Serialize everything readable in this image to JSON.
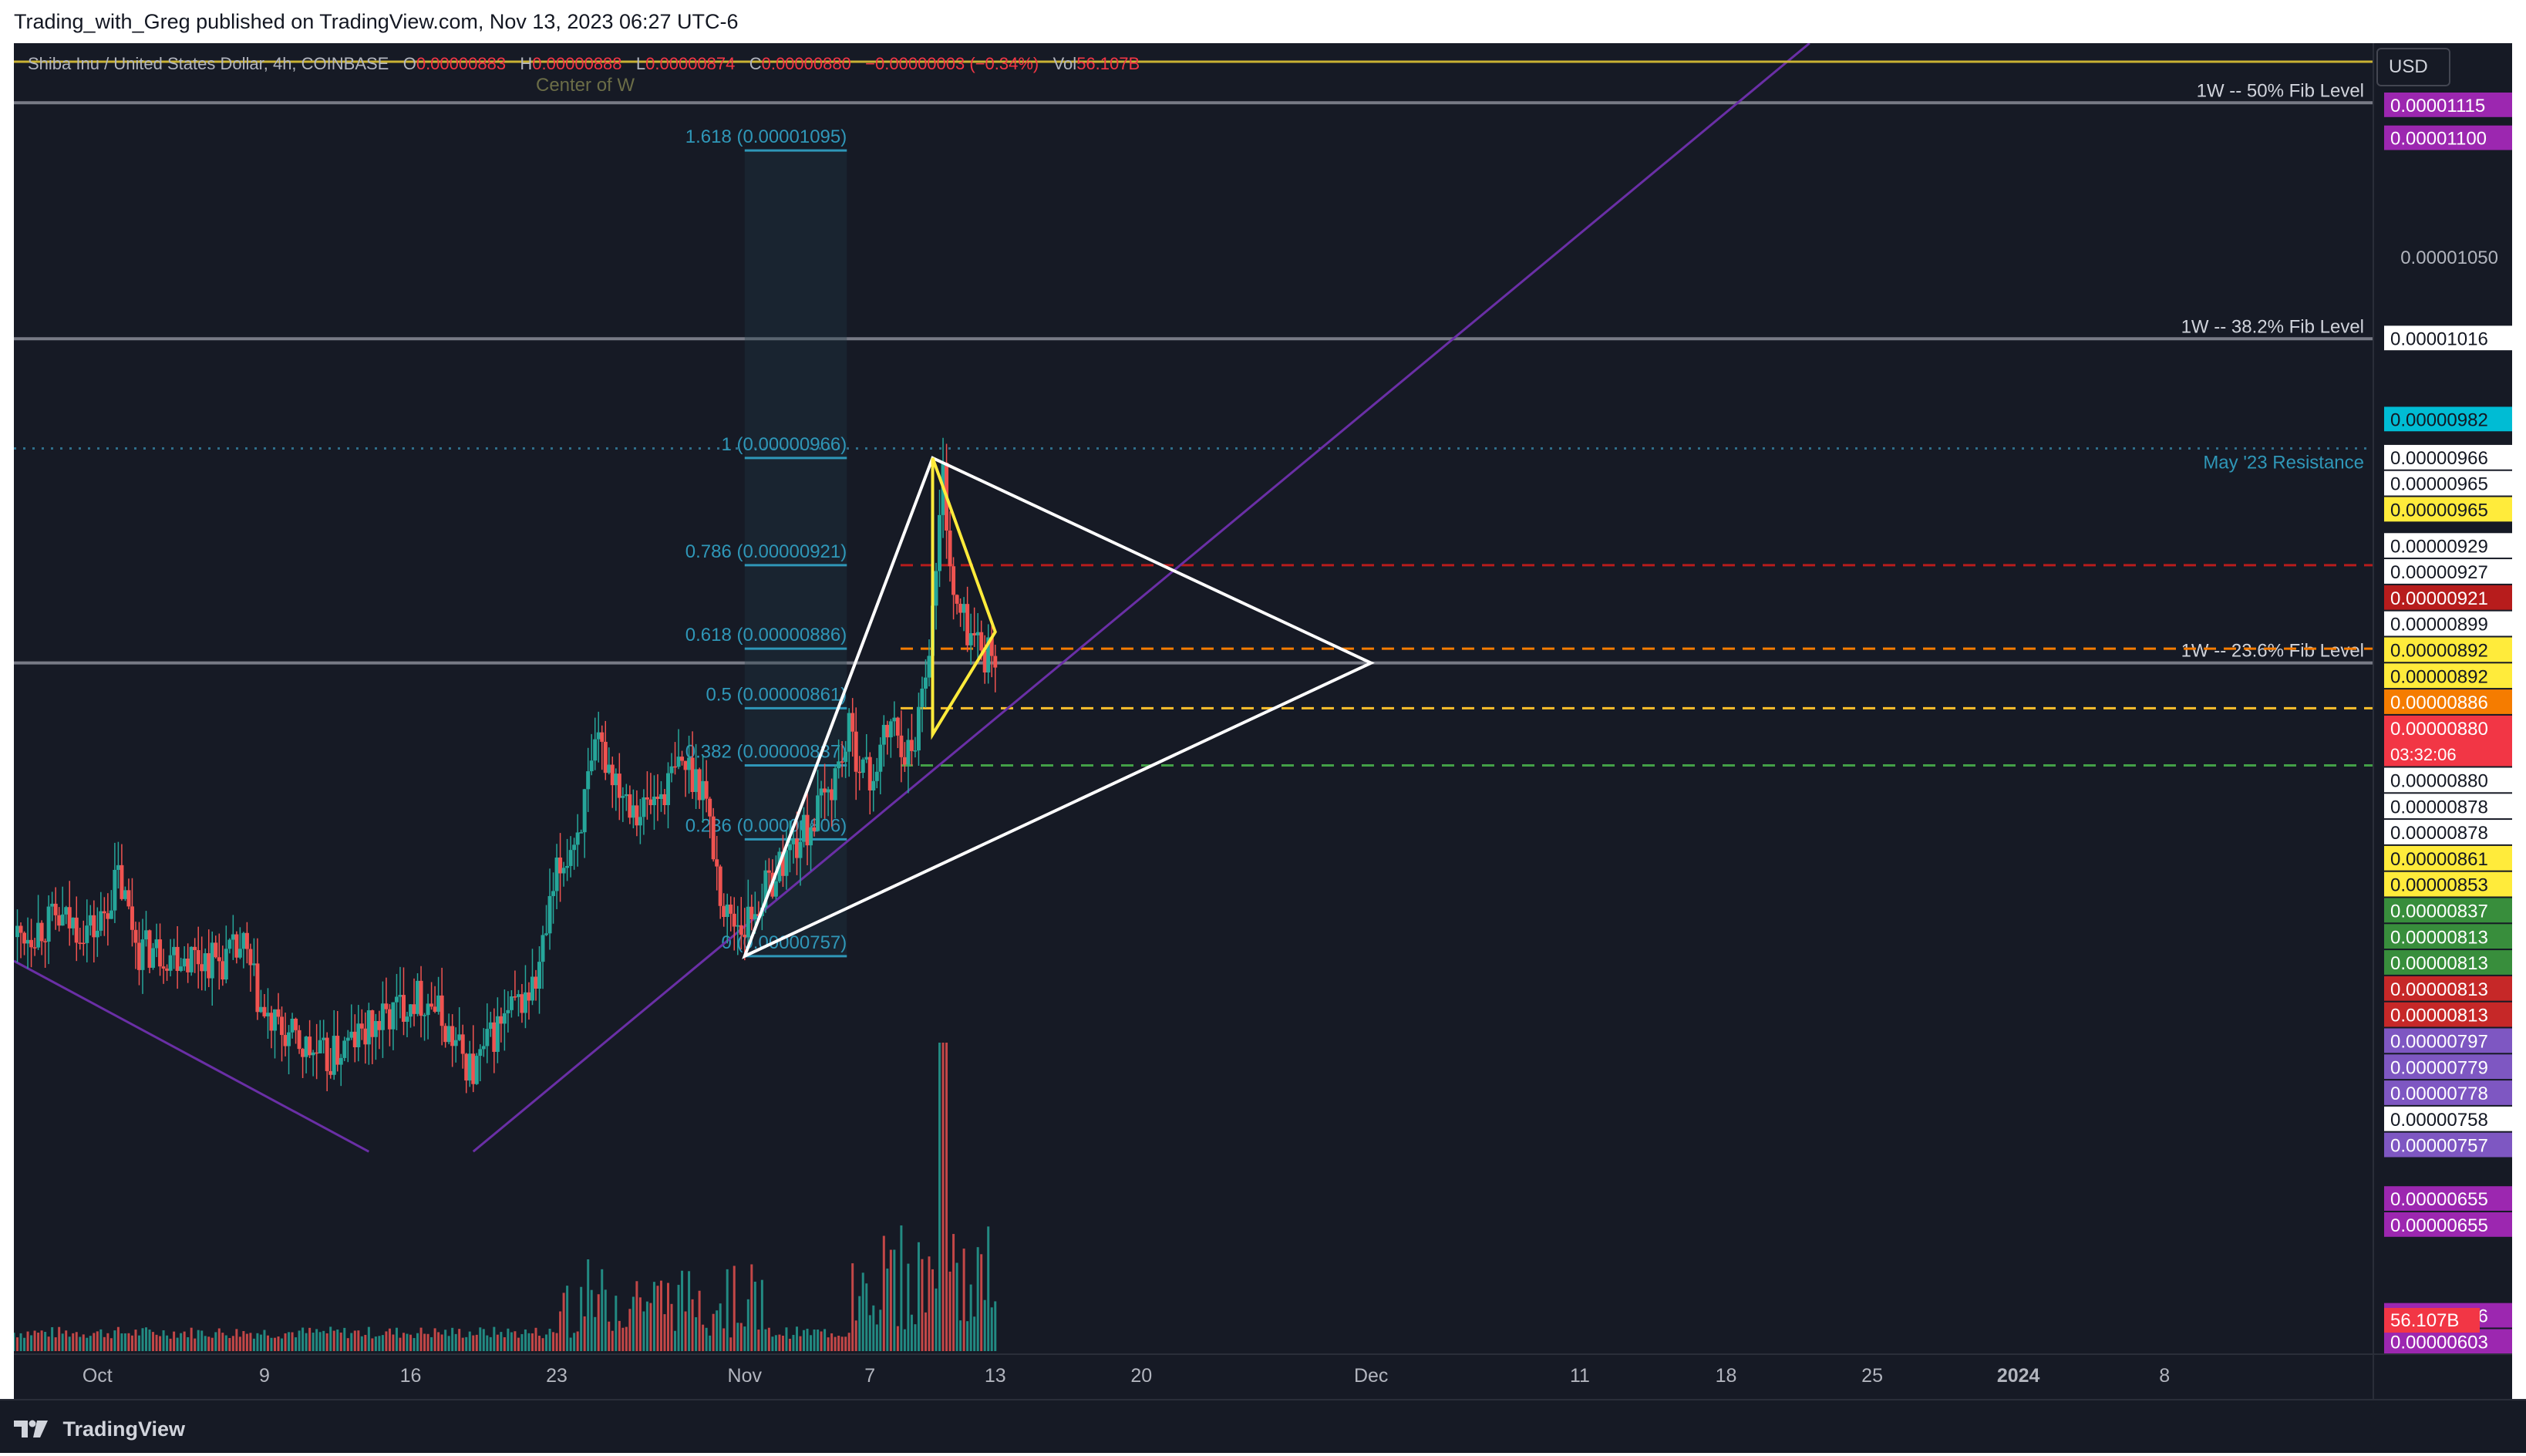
{
  "header": {
    "published": "Trading_with_Greg published on TradingView.com, Nov 13, 2023 06:27 UTC-6"
  },
  "legend": {
    "symbol": "Shiba Inu / United States Dollar, 4h, COINBASE",
    "o_label": "O",
    "o_value": "0.00000883",
    "h_label": "H",
    "h_value": "0.00000888",
    "l_label": "L",
    "l_value": "0.00000874",
    "c_label": "C",
    "c_value": "0.00000880",
    "change": "−0.00000003 (−0.34%)",
    "vol_label": "Vol",
    "vol_value": "56.107B"
  },
  "currency_button": "USD",
  "footer": {
    "brand": "TradingView"
  },
  "colors": {
    "background": "#161a25",
    "up": "#26a69a",
    "down": "#ef5350",
    "fib": "#2f97b8",
    "purple_line": "#6a2fa6"
  },
  "chart_data": {
    "type": "candlestick",
    "title": "",
    "timeframe": "4h",
    "ylim": [
      5.9e-06,
      1.14e-05
    ],
    "y_ticks": [
      "0.00001050"
    ],
    "x_axis": {
      "labels": [
        {
          "label": "Oct",
          "date": "2023-10-01"
        },
        {
          "label": "9",
          "date": "2023-10-09"
        },
        {
          "label": "16",
          "date": "2023-10-16"
        },
        {
          "label": "23",
          "date": "2023-10-23"
        },
        {
          "label": "Nov",
          "date": "2023-11-01"
        },
        {
          "label": "7",
          "date": "2023-11-07"
        },
        {
          "label": "13",
          "date": "2023-11-13"
        },
        {
          "label": "20",
          "date": "2023-11-20"
        },
        {
          "label": "Dec",
          "date": "2023-12-01"
        },
        {
          "label": "11",
          "date": "2023-12-11"
        },
        {
          "label": "18",
          "date": "2023-12-18"
        },
        {
          "label": "25",
          "date": "2023-12-25"
        },
        {
          "label": "2024",
          "date": "2024-01-01"
        },
        {
          "label": "8",
          "date": "2024-01-08"
        }
      ],
      "range": [
        "2023-09-27",
        "2024-01-18"
      ]
    },
    "price_path": [
      [
        "2023-09-27",
        7.65e-06
      ],
      [
        "2023-09-29",
        7.72e-06
      ],
      [
        "2023-10-01",
        7.68e-06
      ],
      [
        "2023-10-02",
        7.9e-06
      ],
      [
        "2023-10-03",
        7.6e-06
      ],
      [
        "2023-10-05",
        7.58e-06
      ],
      [
        "2023-10-07",
        7.55e-06
      ],
      [
        "2023-10-08",
        7.6e-06
      ],
      [
        "2023-10-09",
        7.3e-06
      ],
      [
        "2023-10-11",
        7.18e-06
      ],
      [
        "2023-10-12",
        7.13e-06
      ],
      [
        "2023-10-13",
        7.2e-06
      ],
      [
        "2023-10-15",
        7.32e-06
      ],
      [
        "2023-10-16",
        7.4e-06
      ],
      [
        "2023-10-17",
        7.38e-06
      ],
      [
        "2023-10-18",
        7.22e-06
      ],
      [
        "2023-10-19",
        7.08e-06
      ],
      [
        "2023-10-20",
        7.25e-06
      ],
      [
        "2023-10-21",
        7.35e-06
      ],
      [
        "2023-10-22",
        7.45e-06
      ],
      [
        "2023-10-23",
        7.9e-06
      ],
      [
        "2023-10-24",
        8.1e-06
      ],
      [
        "2023-10-25",
        8.45e-06
      ],
      [
        "2023-10-26",
        8.3e-06
      ],
      [
        "2023-10-27",
        8.18e-06
      ],
      [
        "2023-10-28",
        8.25e-06
      ],
      [
        "2023-10-29",
        8.38e-06
      ],
      [
        "2023-10-30",
        8.3e-06
      ],
      [
        "2023-10-31",
        7.75e-06
      ],
      [
        "2023-11-01",
        7.7e-06
      ],
      [
        "2023-11-02",
        7.85e-06
      ],
      [
        "2023-11-03",
        8e-06
      ],
      [
        "2023-11-04",
        8.1e-06
      ],
      [
        "2023-11-05",
        8.25e-06
      ],
      [
        "2023-11-06",
        8.5e-06
      ],
      [
        "2023-11-07",
        8.3e-06
      ],
      [
        "2023-11-08",
        8.55e-06
      ],
      [
        "2023-11-09",
        8.4e-06
      ],
      [
        "2023-11-10",
        9e-06
      ],
      [
        "2023-11-10T12",
        9.6e-06
      ],
      [
        "2023-11-11",
        9.05e-06
      ],
      [
        "2023-11-12",
        8.9e-06
      ],
      [
        "2023-11-13",
        8.8e-06
      ]
    ],
    "volume": {
      "last": "56.107B"
    },
    "fib_retracement": {
      "start_date": "2023-11-01",
      "end_date": "2023-11-07",
      "levels": [
        {
          "label": "1.618 (0.00001095)",
          "price": 1.095e-05
        },
        {
          "label": "1 (0.00000966)",
          "price": 9.66e-06
        },
        {
          "label": "0.786 (0.00000921)",
          "price": 9.21e-06
        },
        {
          "label": "0.618 (0.00000886)",
          "price": 8.86e-06
        },
        {
          "label": "0.5 (0.00000861)",
          "price": 8.61e-06
        },
        {
          "label": "0.382 (0.00000837)",
          "price": 8.37e-06
        },
        {
          "label": "0.236 (0.00000806)",
          "price": 8.06e-06
        },
        {
          "label": "0 (0.00000757)",
          "price": 7.57e-06
        }
      ]
    },
    "horizontal_levels": [
      {
        "label": "1W -- 50% Fib Level",
        "price": 1.115e-05
      },
      {
        "label": "1W -- 38.2% Fib Level",
        "price": 1.016e-05
      },
      {
        "label": "May '23 Resistance",
        "price": 9.7e-06
      },
      {
        "label": "1W -- 23.6% Fib Level",
        "price": 8.8e-06
      }
    ],
    "dashed_levels": [
      {
        "price": 9.21e-06,
        "color": "#b71c1c"
      },
      {
        "price": 8.86e-06,
        "color": "#f57c00"
      },
      {
        "price": 8.61e-06,
        "color": "#fbc02d"
      },
      {
        "price": 8.37e-06,
        "color": "#43a047"
      }
    ],
    "annotations": [
      {
        "text": "Center of W",
        "date": "2023-10-22",
        "price": 1.12e-05
      }
    ],
    "triangle_white": [
      [
        "2023-11-01",
        7.57e-06
      ],
      [
        "2023-11-10",
        9.66e-06
      ],
      [
        "2023-12-01",
        8.8e-06
      ]
    ],
    "triangle_yellow": [
      [
        "2023-11-10",
        9.66e-06
      ],
      [
        "2023-11-10",
        8.5e-06
      ],
      [
        "2023-11-13",
        8.93e-06
      ]
    ],
    "purple_trendlines": [
      [
        [
          "2023-09-27",
          7.55e-06
        ],
        [
          "2023-10-14",
          6.75e-06
        ]
      ],
      [
        [
          "2023-10-19",
          6.75e-06
        ],
        [
          "2023-12-22",
          1.14e-05
        ]
      ]
    ],
    "price_scale_labels": [
      {
        "value": "0.00001115",
        "bg": "#9c27b0",
        "fg": "#ffffff"
      },
      {
        "value": "0.00001100",
        "bg": "#9c27b0",
        "fg": "#ffffff"
      },
      {
        "value": "0.00001016",
        "bg": "#ffffff",
        "fg": "#131722"
      },
      {
        "value": "0.00000982",
        "bg": "#00bcd4",
        "fg": "#131722"
      },
      {
        "value": "0.00000966",
        "bg": "#ffffff",
        "fg": "#131722"
      },
      {
        "value": "0.00000965",
        "bg": "#ffffff",
        "fg": "#131722"
      },
      {
        "value": "0.00000965",
        "bg": "#ffeb3b",
        "fg": "#131722"
      },
      {
        "value": "0.00000929",
        "bg": "#ffffff",
        "fg": "#131722"
      },
      {
        "value": "0.00000927",
        "bg": "#ffffff",
        "fg": "#131722"
      },
      {
        "value": "0.00000921",
        "bg": "#b71c1c",
        "fg": "#ffffff"
      },
      {
        "value": "0.00000899",
        "bg": "#ffffff",
        "fg": "#131722"
      },
      {
        "value": "0.00000892",
        "bg": "#ffeb3b",
        "fg": "#131722"
      },
      {
        "value": "0.00000892",
        "bg": "#ffeb3b",
        "fg": "#131722"
      },
      {
        "value": "0.00000886",
        "bg": "#f57c00",
        "fg": "#ffffff"
      },
      {
        "value": "0.00000880",
        "bg": "#f23645",
        "fg": "#ffffff",
        "countdown": "03:32:06"
      },
      {
        "value": "0.00000880",
        "bg": "#ffffff",
        "fg": "#131722"
      },
      {
        "value": "0.00000878",
        "bg": "#ffffff",
        "fg": "#131722"
      },
      {
        "value": "0.00000878",
        "bg": "#ffffff",
        "fg": "#131722"
      },
      {
        "value": "0.00000861",
        "bg": "#ffeb3b",
        "fg": "#131722"
      },
      {
        "value": "0.00000853",
        "bg": "#ffeb3b",
        "fg": "#131722"
      },
      {
        "value": "0.00000837",
        "bg": "#388e3c",
        "fg": "#ffffff"
      },
      {
        "value": "0.00000813",
        "bg": "#388e3c",
        "fg": "#ffffff"
      },
      {
        "value": "0.00000813",
        "bg": "#388e3c",
        "fg": "#ffffff"
      },
      {
        "value": "0.00000813",
        "bg": "#c62828",
        "fg": "#ffffff"
      },
      {
        "value": "0.00000813",
        "bg": "#c62828",
        "fg": "#ffffff"
      },
      {
        "value": "0.00000797",
        "bg": "#7e57c2",
        "fg": "#ffffff"
      },
      {
        "value": "0.00000779",
        "bg": "#7e57c2",
        "fg": "#ffffff"
      },
      {
        "value": "0.00000778",
        "bg": "#7e57c2",
        "fg": "#ffffff"
      },
      {
        "value": "0.00000758",
        "bg": "#ffffff",
        "fg": "#131722"
      },
      {
        "value": "0.00000757",
        "bg": "#7e57c2",
        "fg": "#ffffff"
      },
      {
        "value": "0.00000655",
        "bg": "#9c27b0",
        "fg": "#ffffff"
      },
      {
        "value": "0.00000655",
        "bg": "#9c27b0",
        "fg": "#ffffff"
      },
      {
        "value": "0.00000606",
        "bg": "#9c27b0",
        "fg": "#ffffff"
      },
      {
        "value": "0.00000603",
        "bg": "#9c27b0",
        "fg": "#ffffff"
      }
    ],
    "volume_label": {
      "value": "56.107B",
      "bg": "#f23645",
      "fg": "#ffffff"
    }
  }
}
